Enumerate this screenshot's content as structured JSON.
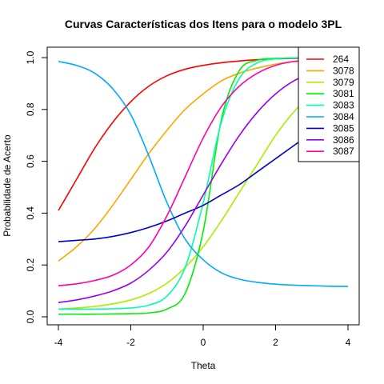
{
  "chart_data": {
    "type": "line",
    "title": "Curvas Características dos Itens para o modelo 3PL",
    "xlabel": "Theta",
    "ylabel": "Probabilidade de Acerto",
    "xlim": [
      -4,
      4
    ],
    "ylim": [
      0,
      1
    ],
    "x_ticks": [
      "-4",
      "-2",
      "0",
      "2",
      "4"
    ],
    "y_ticks": [
      "0.0",
      "0.2",
      "0.4",
      "0.6",
      "0.8",
      "1.0"
    ],
    "legend_position": "top-right",
    "grid": false,
    "x": [
      -4,
      -3.5,
      -3,
      -2.5,
      -2,
      -1.5,
      -1,
      -0.5,
      0,
      0.5,
      1,
      1.5,
      2,
      2.5,
      3,
      3.5,
      4
    ],
    "series": [
      {
        "name": "264",
        "color": "#FF0000",
        "values": [
          0.41,
          0.53,
          0.65,
          0.75,
          0.83,
          0.89,
          0.93,
          0.955,
          0.97,
          0.98,
          0.987,
          0.992,
          0.995,
          0.997,
          0.998,
          0.999,
          0.999
        ]
      },
      {
        "name": "3078",
        "color": "#FFA500",
        "values": [
          0.215,
          0.27,
          0.34,
          0.43,
          0.53,
          0.63,
          0.72,
          0.8,
          0.86,
          0.91,
          0.94,
          0.96,
          0.975,
          0.985,
          0.99,
          0.994,
          0.996
        ]
      },
      {
        "name": "3079",
        "color": "#AAEE00",
        "values": [
          0.03,
          0.034,
          0.04,
          0.05,
          0.065,
          0.09,
          0.13,
          0.19,
          0.27,
          0.37,
          0.48,
          0.59,
          0.7,
          0.79,
          0.86,
          0.91,
          0.94
        ]
      },
      {
        "name": "3081",
        "color": "#00EE00",
        "values": [
          0.01,
          0.01,
          0.01,
          0.011,
          0.012,
          0.015,
          0.03,
          0.09,
          0.33,
          0.76,
          0.95,
          0.99,
          0.997,
          0.999,
          1.0,
          1.0,
          1.0
        ]
      },
      {
        "name": "3083",
        "color": "#00FFAA",
        "values": [
          0.03,
          0.03,
          0.03,
          0.031,
          0.034,
          0.045,
          0.08,
          0.19,
          0.44,
          0.75,
          0.92,
          0.98,
          0.995,
          0.999,
          1.0,
          1.0,
          1.0
        ]
      },
      {
        "name": "3084",
        "color": "#00AAFF",
        "values": [
          0.985,
          0.97,
          0.94,
          0.88,
          0.78,
          0.62,
          0.44,
          0.3,
          0.22,
          0.17,
          0.145,
          0.133,
          0.126,
          0.122,
          0.12,
          0.118,
          0.117
        ]
      },
      {
        "name": "3085",
        "color": "#0000CC",
        "values": [
          0.29,
          0.295,
          0.3,
          0.31,
          0.325,
          0.345,
          0.37,
          0.4,
          0.43,
          0.47,
          0.51,
          0.56,
          0.61,
          0.66,
          0.71,
          0.75,
          0.79
        ]
      },
      {
        "name": "3086",
        "color": "#9900EE",
        "values": [
          0.055,
          0.065,
          0.08,
          0.1,
          0.13,
          0.18,
          0.25,
          0.35,
          0.47,
          0.59,
          0.7,
          0.79,
          0.86,
          0.91,
          0.94,
          0.96,
          0.975
        ]
      },
      {
        "name": "3087",
        "color": "#FF00AA",
        "values": [
          0.12,
          0.127,
          0.14,
          0.16,
          0.2,
          0.27,
          0.39,
          0.54,
          0.69,
          0.81,
          0.89,
          0.94,
          0.97,
          0.985,
          0.99,
          0.994,
          0.997
        ]
      }
    ]
  }
}
